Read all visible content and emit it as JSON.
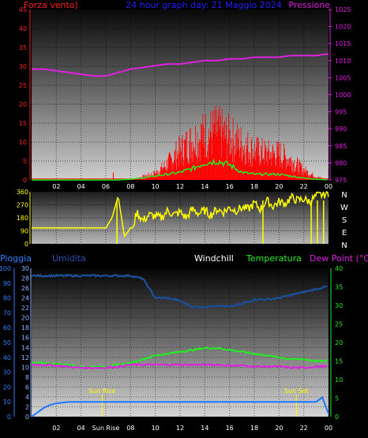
{
  "top": {
    "left_label": "Forza vento)",
    "title": "24 hour graph day: 21 Maggio 2024",
    "right_label": "Pressione",
    "left_ticks": [
      "0",
      "5",
      "10",
      "15",
      "20",
      "25",
      "30",
      "35",
      "40",
      "45"
    ],
    "right_ticks": [
      "975",
      "980",
      "985",
      "990",
      "995",
      "1000",
      "1005",
      "1010",
      "1015",
      "1020",
      "1025"
    ]
  },
  "middle": {
    "left_ticks": [
      "0",
      "90",
      "180",
      "270",
      "360"
    ],
    "right_ticks": [
      "N",
      "W",
      "S",
      "E",
      "N"
    ]
  },
  "bottom": {
    "label_pioggia": "Pioggia",
    "label_umidita": "Umidita",
    "label_windchill": "Windchill",
    "label_temperatura": "Temperatura",
    "label_dewpoint": "Dew Point (°C)",
    "left_ticks_outer": [
      "0",
      "10",
      "20",
      "30",
      "40",
      "50",
      "60",
      "70",
      "80",
      "90",
      "100"
    ],
    "left_ticks_inner": [
      "0",
      "2",
      "4",
      "6",
      "8",
      "10",
      "12",
      "14",
      "16",
      "18",
      "20",
      "22",
      "24",
      "26",
      "28",
      "30"
    ],
    "right_ticks": [
      "0",
      "5",
      "10",
      "15",
      "20",
      "25",
      "30",
      "35",
      "40"
    ],
    "sunrise": "Sun Rise",
    "sunset": "Sun Set"
  },
  "x_ticks_top": [
    "02",
    "04",
    "06",
    "08",
    "10",
    "12",
    "14",
    "16",
    "18",
    "20",
    "22",
    "00"
  ],
  "x_ticks_bottom": [
    "02",
    "04",
    "Sun Rise",
    "08",
    "10",
    "12",
    "14",
    "16",
    "18",
    "20",
    "22",
    "00"
  ],
  "colors": {
    "wind": "#ff0000",
    "gust": "#ff0000",
    "pressure": "#e020e0",
    "direction": "#ffff00",
    "rain": "#1e78ff",
    "humidity": "#1c4f9a",
    "temperature": "#22ee22",
    "dewpoint": "#dd22dd",
    "windchill": "#ffffff"
  },
  "chart_data": [
    {
      "type": "line",
      "title": "24 hour graph day: 21 Maggio 2024",
      "x_unit": "hour",
      "ylabel_left": "Forza vento)",
      "ylabel_right": "Pressione",
      "ylim_left": [
        0,
        45
      ],
      "ylim_right": [
        975,
        1025
      ],
      "series": [
        {
          "name": "Pressione",
          "axis": "right",
          "x": [
            0,
            1,
            2,
            3,
            4,
            5,
            6,
            7,
            8,
            9,
            10,
            11,
            12,
            13,
            14,
            15,
            16,
            17,
            18,
            19,
            20,
            21,
            22,
            23,
            24
          ],
          "y": [
            1007.5,
            1007.5,
            1007,
            1006.5,
            1006,
            1005.5,
            1005.5,
            1006.5,
            1007.5,
            1008,
            1008.5,
            1009,
            1009,
            1009.5,
            1010,
            1010,
            1010.5,
            1010.5,
            1011,
            1011,
            1011,
            1011.5,
            1011.5,
            1011.5,
            1012
          ]
        },
        {
          "name": "Forza vento)",
          "axis": "left",
          "x": [
            0,
            2,
            4,
            6,
            7,
            8,
            9,
            10,
            11,
            12,
            13,
            14,
            15,
            16,
            17,
            18,
            19,
            20,
            21,
            22,
            23,
            24
          ],
          "y": [
            0,
            0,
            0,
            0,
            0,
            0,
            1,
            2,
            5,
            9,
            12,
            14,
            15,
            13,
            11,
            9,
            8,
            8,
            6,
            3,
            1,
            0
          ]
        },
        {
          "axis": "left",
          "x": [
            0,
            2,
            4,
            6,
            7,
            8,
            9,
            10,
            11,
            12,
            13,
            14,
            15,
            16,
            17,
            18,
            19,
            20,
            21,
            22,
            23,
            24
          ],
          "y": [
            0,
            0,
            0,
            0,
            0,
            0.2,
            0.5,
            1,
            1.5,
            2,
            3,
            4.5,
            5,
            4,
            2,
            1.5,
            1.5,
            1.5,
            1,
            0.5,
            0.2,
            0
          ]
        }
      ]
    },
    {
      "type": "line",
      "x_unit": "hour",
      "ylim": [
        0,
        360
      ],
      "series": [
        {
          "axis": "left",
          "x": [
            0,
            1,
            2,
            3,
            4,
            5,
            6,
            6.5,
            7,
            7.5,
            8,
            8.2,
            8.5,
            9,
            9.5,
            10,
            10.5,
            11,
            11.5,
            12,
            12.5,
            13,
            13.5,
            14,
            14.5,
            15,
            15.5,
            16,
            16.5,
            17,
            17.5,
            18,
            18.5,
            19,
            19.5,
            20,
            20.5,
            21,
            21.5,
            22,
            22.5,
            23,
            23.5,
            24
          ],
          "y": [
            110,
            110,
            110,
            110,
            110,
            110,
            110,
            180,
            330,
            50,
            110,
            110,
            220,
            160,
            200,
            190,
            180,
            230,
            200,
            220,
            180,
            240,
            210,
            230,
            200,
            240,
            220,
            250,
            230,
            250,
            240,
            280,
            240,
            300,
            260,
            290,
            280,
            320,
            300,
            310,
            290,
            330,
            340,
            350
          ]
        }
      ]
    },
    {
      "type": "line",
      "x_unit": "hour",
      "ylabel_left": "Pioggia",
      "ylabel_right": "Dew Point (°C)",
      "ylim_left": [
        0,
        100
      ],
      "ylim_right": [
        0,
        40
      ],
      "series": [
        {
          "name": "Umidita",
          "axis": "left",
          "x": [
            0,
            1,
            2,
            3,
            4,
            5,
            6,
            7,
            8,
            9,
            10,
            11,
            12,
            13,
            14,
            15,
            16,
            17,
            18,
            19,
            20,
            21,
            22,
            23,
            24
          ],
          "y": [
            95,
            95,
            95,
            95,
            95,
            95,
            95,
            95,
            95,
            93,
            80,
            80,
            78,
            74,
            74,
            75,
            74,
            76,
            79,
            79,
            80,
            82,
            84,
            86,
            88
          ]
        },
        {
          "name": "Temperatura",
          "axis": "right",
          "x": [
            0,
            1,
            2,
            3,
            4,
            5,
            6,
            7,
            8,
            9,
            10,
            11,
            12,
            13,
            14,
            15,
            16,
            17,
            18,
            19,
            20,
            21,
            22,
            23,
            24
          ],
          "y": [
            14.5,
            14.5,
            14.2,
            14,
            13.5,
            13.5,
            13.5,
            14,
            14.5,
            15.5,
            16.5,
            17,
            17.5,
            18,
            18.5,
            18.5,
            18,
            17.5,
            17,
            16.5,
            16,
            15.5,
            15.5,
            15,
            15
          ]
        },
        {
          "name": "Dew Point (°C)",
          "axis": "right",
          "x": [
            0,
            1,
            2,
            3,
            4,
            5,
            6,
            7,
            8,
            9,
            10,
            11,
            12,
            13,
            14,
            15,
            16,
            17,
            18,
            19,
            20,
            21,
            22,
            23,
            24
          ],
          "y": [
            14,
            14,
            13.8,
            13.5,
            13.2,
            13.2,
            13.2,
            13.5,
            14,
            14,
            14,
            14,
            14,
            14,
            14,
            14,
            13.8,
            13.8,
            13.5,
            13.5,
            13.5,
            13.2,
            13.2,
            13.5,
            13.5
          ]
        },
        {
          "name": "Pioggia",
          "axis": "left",
          "x": [
            0,
            0.5,
            1,
            1.5,
            2,
            3,
            4,
            5,
            6,
            7,
            8,
            9,
            10,
            11,
            12,
            13,
            14,
            15,
            16,
            17,
            18,
            19,
            20,
            21,
            22,
            23,
            23.5,
            24
          ],
          "y": [
            0,
            3,
            6,
            8,
            9,
            10,
            10,
            10,
            10,
            10,
            10,
            10,
            10,
            10,
            10,
            10,
            10,
            10,
            10,
            10,
            10,
            10,
            10,
            10,
            10,
            10,
            13,
            2
          ]
        }
      ],
      "annotations": [
        "Sun Rise",
        "Sun Set"
      ]
    }
  ]
}
